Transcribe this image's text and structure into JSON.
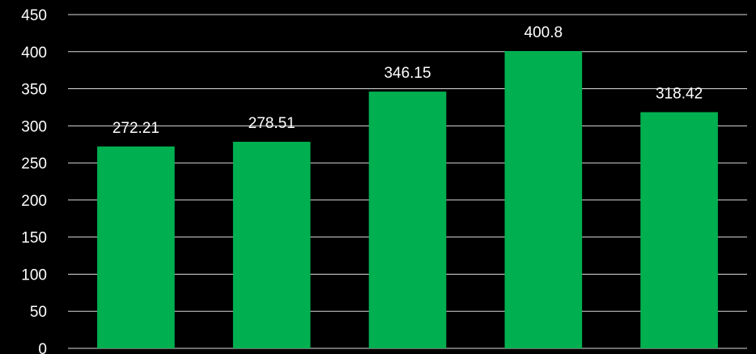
{
  "chart_data": {
    "type": "bar",
    "title": "",
    "xlabel": "",
    "ylabel": "",
    "categories": [
      "",
      "",
      "",
      "",
      ""
    ],
    "values": [
      272.21,
      278.51,
      346.15,
      400.8,
      318.42
    ],
    "data_labels": [
      "272.21",
      "278.51",
      "346.15",
      "400.8",
      "318.42"
    ],
    "ylim": [
      0,
      450
    ],
    "yticks": [
      0,
      50,
      100,
      150,
      200,
      250,
      300,
      350,
      400,
      450
    ],
    "grid": true,
    "legend": "none",
    "colors": {
      "background": "#000000",
      "bar": "#00b050",
      "grid": "#d9d9d9",
      "text": "#ffffff"
    }
  }
}
